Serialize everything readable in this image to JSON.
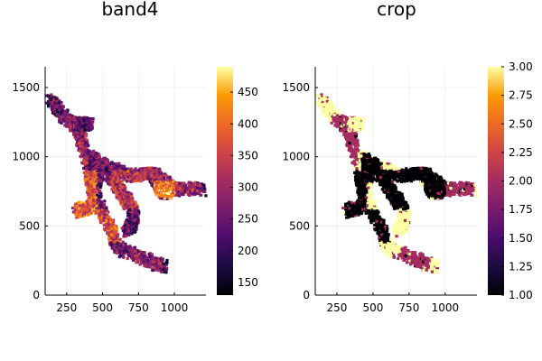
{
  "chart_data": [
    {
      "type": "heatmap",
      "title": "band4",
      "xlabel": "",
      "ylabel": "",
      "xlim": [
        100,
        1220
      ],
      "ylim": [
        0,
        1650
      ],
      "xticks": [
        250,
        500,
        750,
        1000
      ],
      "yticks": [
        0,
        500,
        1000,
        1500
      ],
      "colormap": "inferno",
      "colorbar": {
        "min": 130,
        "max": 490,
        "ticks": [
          150,
          200,
          250,
          300,
          350,
          400,
          450
        ]
      },
      "grid": true,
      "region": "river network mask, values per pixel",
      "zones": [
        {
          "x": [
            120,
            210
          ],
          "y": [
            1200,
            1450
          ],
          "value": 230
        },
        {
          "x": [
            200,
            330
          ],
          "y": [
            1180,
            1300
          ],
          "value": 280
        },
        {
          "x": [
            260,
            400
          ],
          "y": [
            930,
            1180
          ],
          "value": 300
        },
        {
          "x": [
            300,
            460
          ],
          "y": [
            560,
            900
          ],
          "value": 380
        },
        {
          "x": [
            440,
            620
          ],
          "y": [
            380,
            620
          ],
          "value": 360
        },
        {
          "x": [
            520,
            700
          ],
          "y": [
            300,
            480
          ],
          "value": 250
        },
        {
          "x": [
            640,
            900
          ],
          "y": [
            180,
            360
          ],
          "value": 280
        },
        {
          "x": [
            420,
            560
          ],
          "y": [
            820,
            1020
          ],
          "value": 250
        },
        {
          "x": [
            540,
            780
          ],
          "y": [
            620,
            900
          ],
          "value": 330
        },
        {
          "x": [
            700,
            1000
          ],
          "y": [
            820,
            930
          ],
          "value": 300
        },
        {
          "x": [
            860,
            1000
          ],
          "y": [
            700,
            880
          ],
          "value": 420
        },
        {
          "x": [
            990,
            1200
          ],
          "y": [
            700,
            820
          ],
          "value": 300
        }
      ]
    },
    {
      "type": "heatmap",
      "title": "crop",
      "xlabel": "",
      "ylabel": "",
      "xlim": [
        100,
        1220
      ],
      "ylim": [
        0,
        1650
      ],
      "xticks": [
        250,
        500,
        750,
        1000
      ],
      "yticks": [
        0,
        500,
        1000,
        1500
      ],
      "colormap": "inferno",
      "colorbar": {
        "min": 1.0,
        "max": 3.0,
        "ticks": [
          1.0,
          1.25,
          1.5,
          1.75,
          2.0,
          2.25,
          2.5,
          2.75,
          3.0
        ],
        "tick_labels": [
          "1.00",
          "1.25",
          "1.50",
          "1.75",
          "2.00",
          "2.25",
          "2.50",
          "2.75",
          "3.00"
        ]
      },
      "grid": true,
      "region": "river network mask, class per pixel",
      "zones": [
        {
          "x": [
            120,
            210
          ],
          "y": [
            1200,
            1450
          ],
          "value": 3
        },
        {
          "x": [
            200,
            330
          ],
          "y": [
            1180,
            1300
          ],
          "value": 2
        },
        {
          "x": [
            260,
            400
          ],
          "y": [
            930,
            1180
          ],
          "value": 2
        },
        {
          "x": [
            300,
            460
          ],
          "y": [
            560,
            900
          ],
          "value": 1
        },
        {
          "x": [
            440,
            620
          ],
          "y": [
            380,
            620
          ],
          "value": 1
        },
        {
          "x": [
            520,
            700
          ],
          "y": [
            300,
            480
          ],
          "value": 3
        },
        {
          "x": [
            640,
            900
          ],
          "y": [
            180,
            360
          ],
          "value": 2
        },
        {
          "x": [
            420,
            560
          ],
          "y": [
            820,
            1020
          ],
          "value": 1
        },
        {
          "x": [
            540,
            780
          ],
          "y": [
            620,
            900
          ],
          "value": 1
        },
        {
          "x": [
            700,
            1000
          ],
          "y": [
            820,
            930
          ],
          "value": 1
        },
        {
          "x": [
            860,
            1000
          ],
          "y": [
            700,
            880
          ],
          "value": 1
        },
        {
          "x": [
            990,
            1200
          ],
          "y": [
            700,
            820
          ],
          "value": 2
        }
      ]
    }
  ]
}
